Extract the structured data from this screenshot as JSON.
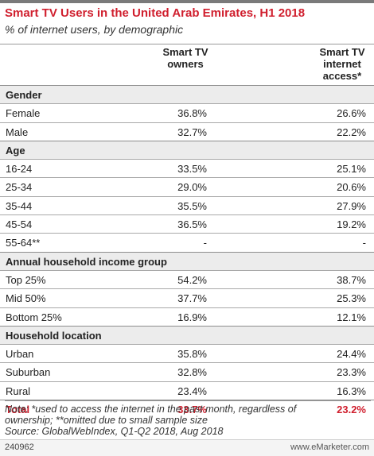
{
  "title": "Smart TV Users in the United Arab Emirates, H1 2018",
  "subtitle": "% of internet users, by demographic",
  "columns": [
    "Smart TV owners",
    "Smart TV internet access*"
  ],
  "chart_data": {
    "type": "table",
    "title": "Smart TV Users in the United Arab Emirates, H1 2018",
    "subtitle": "% of internet users, by demographic",
    "columns": [
      "Smart TV owners",
      "Smart TV internet access*"
    ],
    "rows": [
      {
        "kind": "section",
        "label": "Gender"
      },
      {
        "kind": "data",
        "label": "Female",
        "values": [
          "36.8%",
          "26.6%"
        ]
      },
      {
        "kind": "data",
        "label": "Male",
        "values": [
          "32.7%",
          "22.2%"
        ]
      },
      {
        "kind": "section",
        "label": "Age"
      },
      {
        "kind": "data",
        "label": "16-24",
        "values": [
          "33.5%",
          "25.1%"
        ]
      },
      {
        "kind": "data",
        "label": "25-34",
        "values": [
          "29.0%",
          "20.6%"
        ]
      },
      {
        "kind": "data",
        "label": "35-44",
        "values": [
          "35.5%",
          "27.9%"
        ]
      },
      {
        "kind": "data",
        "label": "45-54",
        "values": [
          "36.5%",
          "19.2%"
        ]
      },
      {
        "kind": "data",
        "label": "55-64**",
        "values": [
          "-",
          "-"
        ]
      },
      {
        "kind": "section",
        "label": "Annual household income group"
      },
      {
        "kind": "data",
        "label": "Top 25%",
        "values": [
          "54.2%",
          "38.7%"
        ]
      },
      {
        "kind": "data",
        "label": "Mid 50%",
        "values": [
          "37.7%",
          "25.3%"
        ]
      },
      {
        "kind": "data",
        "label": "Bottom 25%",
        "values": [
          "16.9%",
          "12.1%"
        ]
      },
      {
        "kind": "section",
        "label": "Household location"
      },
      {
        "kind": "data",
        "label": "Urban",
        "values": [
          "35.8%",
          "24.4%"
        ]
      },
      {
        "kind": "data",
        "label": "Suburban",
        "values": [
          "32.8%",
          "23.3%"
        ]
      },
      {
        "kind": "data",
        "label": "Rural",
        "values": [
          "23.4%",
          "16.3%"
        ]
      },
      {
        "kind": "total",
        "label": "Total",
        "values": [
          "33.7%",
          "23.2%"
        ]
      }
    ]
  },
  "notes": {
    "line1": "Note: *used to access the internet in the past month, regardless of",
    "line2": "ownership; **omitted due to small sample size",
    "source": "Source: GlobalWebIndex, Q1-Q2 2018, Aug 2018"
  },
  "footer": {
    "code": "240962",
    "brand": "www.eMarketer.com"
  },
  "colors": {
    "accent": "#d01f2e",
    "section_bg": "#ececec"
  }
}
